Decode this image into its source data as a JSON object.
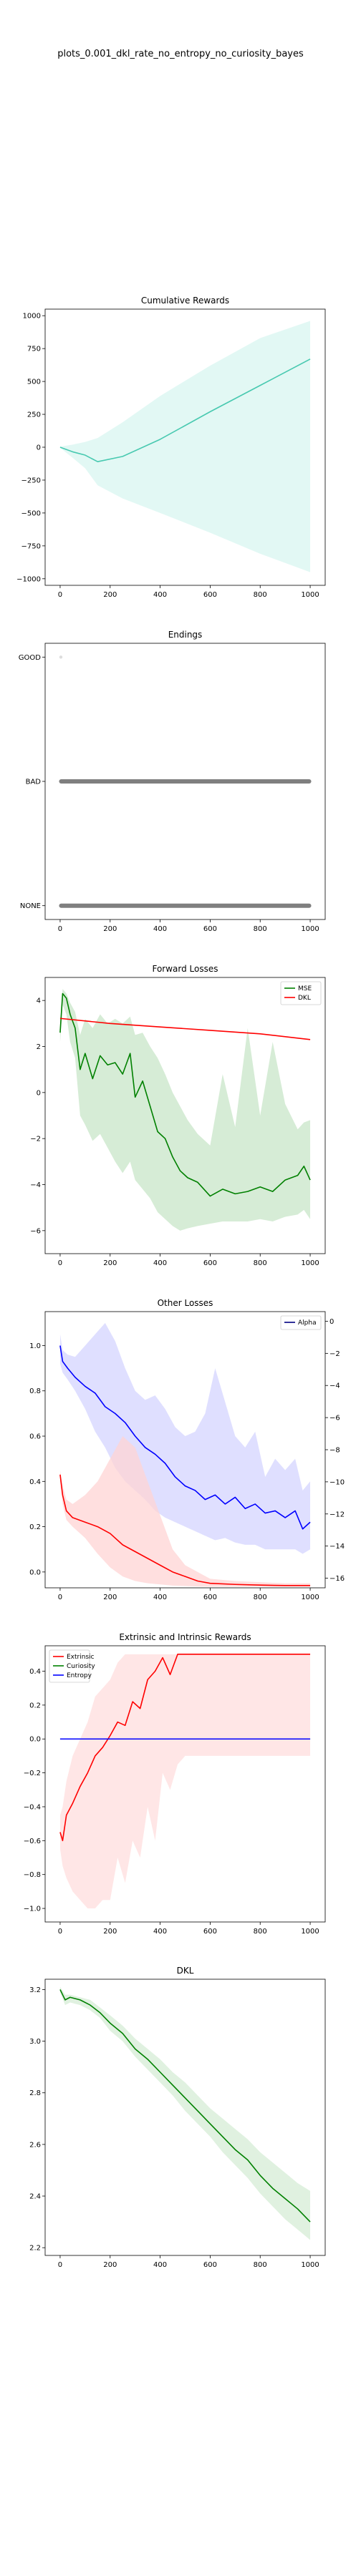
{
  "figure_title": "plots_0.001_dkl_rate_no_entropy_no_curiosity_bayes",
  "chart_data": [
    {
      "type": "line",
      "title": "Cumulative Rewards",
      "xlim": [
        -60,
        1060
      ],
      "ylim": [
        -1050,
        1050
      ],
      "xticks": [
        0,
        200,
        400,
        600,
        800,
        1000
      ],
      "yticks": [
        1000,
        750,
        500,
        250,
        0,
        -250,
        -500,
        -750,
        -1000
      ],
      "ytick_labels": [
        "1000",
        "750",
        "500",
        "250",
        "0",
        "−250",
        "−500",
        "−750",
        "−1000"
      ],
      "series": [
        {
          "color": "#48c9b0",
          "x": [
            0,
            50,
            100,
            150,
            250,
            400,
            600,
            800,
            1000
          ],
          "y": [
            0,
            -35,
            -60,
            -110,
            -70,
            60,
            270,
            470,
            670
          ],
          "band_upper": [
            5,
            20,
            40,
            70,
            190,
            390,
            620,
            830,
            960
          ],
          "band_lower": [
            -5,
            -80,
            -160,
            -290,
            -390,
            -500,
            -650,
            -810,
            -950
          ],
          "band_color": "#d8f6f0"
        }
      ]
    },
    {
      "type": "scatter",
      "title": "Endings",
      "xlim": [
        -60,
        1060
      ],
      "categories": [
        "GOOD",
        "BAD",
        "NONE"
      ],
      "xticks": [
        0,
        200,
        400,
        600,
        800,
        1000
      ],
      "series": [
        {
          "category": "GOOD",
          "x_points": [
            3
          ],
          "color": "#dddddd"
        },
        {
          "category": "BAD",
          "x_range": [
            0,
            1000
          ],
          "color": "#7f7f7f"
        },
        {
          "category": "NONE",
          "x_range": [
            0,
            1000
          ],
          "color": "#7f7f7f"
        }
      ]
    },
    {
      "type": "line",
      "title": "Forward Losses",
      "xlim": [
        -60,
        1060
      ],
      "ylim": [
        -7,
        5
      ],
      "xticks": [
        0,
        200,
        400,
        600,
        800,
        1000
      ],
      "yticks": [
        4,
        2,
        0,
        -2,
        -4,
        -6
      ],
      "ytick_labels": [
        "4",
        "2",
        "0",
        "−2",
        "−4",
        "−6"
      ],
      "legend": "top-right",
      "series": [
        {
          "name": "MSE",
          "color": "#008000",
          "x": [
            0,
            10,
            25,
            40,
            60,
            80,
            100,
            130,
            160,
            190,
            220,
            250,
            280,
            300,
            330,
            360,
            390,
            420,
            450,
            480,
            510,
            550,
            600,
            650,
            700,
            750,
            800,
            850,
            900,
            950,
            975,
            1000
          ],
          "y": [
            2.6,
            4.3,
            4.1,
            3.4,
            2.8,
            1.0,
            1.7,
            0.6,
            1.6,
            1.2,
            1.3,
            0.8,
            1.7,
            -0.2,
            0.5,
            -0.6,
            -1.7,
            -2.0,
            -2.8,
            -3.4,
            -3.7,
            -3.9,
            -4.5,
            -4.2,
            -4.4,
            -4.3,
            -4.1,
            -4.3,
            -3.8,
            -3.6,
            -3.2,
            -3.8
          ],
          "band_upper": [
            3.0,
            4.5,
            4.3,
            3.9,
            3.5,
            2.5,
            3.2,
            2.8,
            3.4,
            3.0,
            3.2,
            3.0,
            3.3,
            2.5,
            2.6,
            2.0,
            1.5,
            0.8,
            0.0,
            -0.6,
            -1.2,
            -1.8,
            -2.3,
            0.8,
            -1.5,
            2.8,
            -1.0,
            2.2,
            -0.5,
            -1.6,
            -1.3,
            -1.2
          ],
          "band_lower": [
            2.2,
            3.8,
            3.4,
            2.2,
            1.5,
            -1.0,
            -1.4,
            -2.1,
            -1.8,
            -2.4,
            -3.0,
            -3.5,
            -3.0,
            -3.8,
            -4.2,
            -4.6,
            -5.2,
            -5.5,
            -5.8,
            -6.0,
            -5.9,
            -5.8,
            -5.7,
            -5.6,
            -5.6,
            -5.6,
            -5.5,
            -5.6,
            -5.4,
            -5.3,
            -5.1,
            -5.5
          ],
          "band_color": "#c8e6c8"
        },
        {
          "name": "DKL",
          "color": "#ff0000",
          "x": [
            0,
            200,
            400,
            600,
            800,
            1000
          ],
          "y": [
            3.22,
            3.0,
            2.85,
            2.7,
            2.55,
            2.3
          ]
        }
      ]
    },
    {
      "type": "line",
      "title": "Other Losses",
      "xlim": [
        -60,
        1060
      ],
      "ylim": [
        -0.07,
        1.15
      ],
      "xticks": [
        0,
        200,
        400,
        600,
        800,
        1000
      ],
      "yticks": [
        1.0,
        0.8,
        0.6,
        0.4,
        0.2,
        0.0
      ],
      "ytick_labels": [
        "1.0",
        "0.8",
        "0.6",
        "0.4",
        "0.2",
        "0.0"
      ],
      "y2lim": [
        -16.6,
        0.6
      ],
      "y2ticks": [
        0,
        -2,
        -4,
        -6,
        -8,
        -10,
        -12,
        -14,
        -16
      ],
      "y2tick_labels": [
        "0",
        "−2",
        "−4",
        "−6",
        "−8",
        "−10",
        "−12",
        "−14",
        "−16"
      ],
      "legend": "top-right",
      "series": [
        {
          "name": "Alpha",
          "color": "#000080",
          "axis": "right",
          "x": [],
          "y": []
        },
        {
          "color": "#0000ff",
          "x": [
            0,
            10,
            30,
            60,
            100,
            140,
            180,
            220,
            260,
            300,
            340,
            380,
            420,
            460,
            500,
            540,
            580,
            620,
            660,
            700,
            740,
            780,
            820,
            860,
            900,
            940,
            970,
            1000
          ],
          "y": [
            1.0,
            0.93,
            0.9,
            0.86,
            0.82,
            0.79,
            0.73,
            0.7,
            0.66,
            0.6,
            0.55,
            0.52,
            0.48,
            0.42,
            0.38,
            0.36,
            0.32,
            0.34,
            0.3,
            0.33,
            0.28,
            0.3,
            0.26,
            0.27,
            0.24,
            0.27,
            0.19,
            0.22
          ],
          "band_upper": [
            1.05,
            0.98,
            0.96,
            0.95,
            1.0,
            1.05,
            1.1,
            1.02,
            0.9,
            0.8,
            0.76,
            0.78,
            0.72,
            0.64,
            0.6,
            0.62,
            0.7,
            0.9,
            0.75,
            0.6,
            0.55,
            0.62,
            0.42,
            0.5,
            0.45,
            0.5,
            0.36,
            0.4
          ],
          "band_lower": [
            0.92,
            0.88,
            0.85,
            0.8,
            0.72,
            0.62,
            0.55,
            0.46,
            0.4,
            0.36,
            0.32,
            0.27,
            0.24,
            0.22,
            0.2,
            0.18,
            0.16,
            0.14,
            0.15,
            0.13,
            0.12,
            0.12,
            0.1,
            0.1,
            0.1,
            0.1,
            0.08,
            0.1
          ],
          "band_color": "#d4d4ff"
        },
        {
          "color": "#ff0000",
          "x": [
            0,
            10,
            25,
            50,
            100,
            150,
            200,
            250,
            300,
            350,
            400,
            450,
            500,
            550,
            600,
            700,
            800,
            900,
            1000
          ],
          "y": [
            0.43,
            0.34,
            0.27,
            0.24,
            0.22,
            0.2,
            0.17,
            0.12,
            0.09,
            0.06,
            0.03,
            0.0,
            -0.02,
            -0.04,
            -0.05,
            -0.055,
            -0.058,
            -0.06,
            -0.06
          ],
          "band_upper": [
            0.45,
            0.38,
            0.32,
            0.3,
            0.34,
            0.4,
            0.5,
            0.6,
            0.55,
            0.4,
            0.25,
            0.1,
            0.03,
            0.0,
            -0.03,
            -0.04,
            -0.045,
            -0.05,
            -0.05
          ],
          "band_lower": [
            0.4,
            0.3,
            0.23,
            0.2,
            0.15,
            0.08,
            0.02,
            -0.02,
            -0.04,
            -0.05,
            -0.055,
            -0.06,
            -0.062,
            -0.064,
            -0.065,
            -0.065,
            -0.065,
            -0.065,
            -0.065
          ],
          "band_color": "#ffd4d4"
        }
      ]
    },
    {
      "type": "line",
      "title": "Extrinsic and Intrinsic Rewards",
      "xlim": [
        -60,
        1060
      ],
      "ylim": [
        -1.08,
        0.55
      ],
      "xticks": [
        0,
        200,
        400,
        600,
        800,
        1000
      ],
      "yticks": [
        0.4,
        0.2,
        0.0,
        -0.2,
        -0.4,
        -0.6,
        -0.8,
        -1.0
      ],
      "ytick_labels": [
        "0.4",
        "0.2",
        "0.0",
        "−0.2",
        "−0.4",
        "−0.6",
        "−0.8",
        "−1.0"
      ],
      "legend": "top-left",
      "series": [
        {
          "name": "Extrinsic",
          "color": "#ff0000",
          "x": [
            0,
            10,
            25,
            50,
            80,
            110,
            140,
            170,
            200,
            230,
            260,
            290,
            320,
            350,
            380,
            410,
            440,
            470,
            500,
            600,
            700,
            800,
            900,
            1000
          ],
          "y": [
            -0.55,
            -0.6,
            -0.45,
            -0.38,
            -0.28,
            -0.2,
            -0.1,
            -0.05,
            0.02,
            0.1,
            0.08,
            0.22,
            0.18,
            0.35,
            0.4,
            0.48,
            0.38,
            0.5,
            0.5,
            0.5,
            0.5,
            0.5,
            0.5,
            0.5
          ],
          "band_upper": [
            -0.45,
            -0.4,
            -0.25,
            -0.1,
            0.0,
            0.1,
            0.25,
            0.3,
            0.35,
            0.45,
            0.5,
            0.5,
            0.5,
            0.5,
            0.5,
            0.5,
            0.5,
            0.5,
            0.5,
            0.5,
            0.5,
            0.5,
            0.5,
            0.5
          ],
          "band_lower": [
            -0.65,
            -0.75,
            -0.82,
            -0.9,
            -0.95,
            -1.0,
            -1.0,
            -0.95,
            -0.95,
            -0.7,
            -0.85,
            -0.6,
            -0.7,
            -0.4,
            -0.6,
            -0.2,
            -0.3,
            -0.15,
            -0.1,
            -0.1,
            -0.1,
            -0.1,
            -0.1,
            -0.1
          ],
          "band_color": "#ffdede"
        },
        {
          "name": "Curiosity",
          "color": "#008000",
          "x": [
            0,
            1000
          ],
          "y": [
            0.0,
            0.0
          ]
        },
        {
          "name": "Entropy",
          "color": "#0000ff",
          "x": [
            0,
            1000
          ],
          "y": [
            0.0,
            0.0
          ]
        }
      ]
    },
    {
      "type": "line",
      "title": "DKL",
      "xlim": [
        -60,
        1060
      ],
      "ylim": [
        2.17,
        3.24
      ],
      "xticks": [
        0,
        200,
        400,
        600,
        800,
        1000
      ],
      "yticks": [
        3.2,
        3.0,
        2.8,
        2.6,
        2.4,
        2.2
      ],
      "ytick_labels": [
        "3.2",
        "3.0",
        "2.8",
        "2.6",
        "2.4",
        "2.2"
      ],
      "series": [
        {
          "color": "#008000",
          "x": [
            0,
            20,
            40,
            80,
            120,
            160,
            200,
            250,
            300,
            350,
            400,
            450,
            500,
            550,
            600,
            650,
            700,
            750,
            800,
            850,
            900,
            950,
            1000
          ],
          "y": [
            3.2,
            3.16,
            3.17,
            3.16,
            3.14,
            3.11,
            3.07,
            3.03,
            2.97,
            2.93,
            2.88,
            2.83,
            2.78,
            2.73,
            2.68,
            2.63,
            2.58,
            2.54,
            2.48,
            2.43,
            2.39,
            2.35,
            2.3
          ],
          "band_upper": [
            3.21,
            3.18,
            3.18,
            3.17,
            3.16,
            3.13,
            3.1,
            3.06,
            3.01,
            2.97,
            2.93,
            2.88,
            2.84,
            2.79,
            2.74,
            2.7,
            2.66,
            2.62,
            2.57,
            2.53,
            2.49,
            2.45,
            2.42
          ],
          "band_lower": [
            3.19,
            3.14,
            3.15,
            3.14,
            3.12,
            3.09,
            3.04,
            3.0,
            2.94,
            2.89,
            2.84,
            2.79,
            2.73,
            2.68,
            2.63,
            2.57,
            2.52,
            2.47,
            2.41,
            2.36,
            2.31,
            2.27,
            2.23
          ],
          "band_color": "#d6ecd6"
        }
      ]
    }
  ]
}
